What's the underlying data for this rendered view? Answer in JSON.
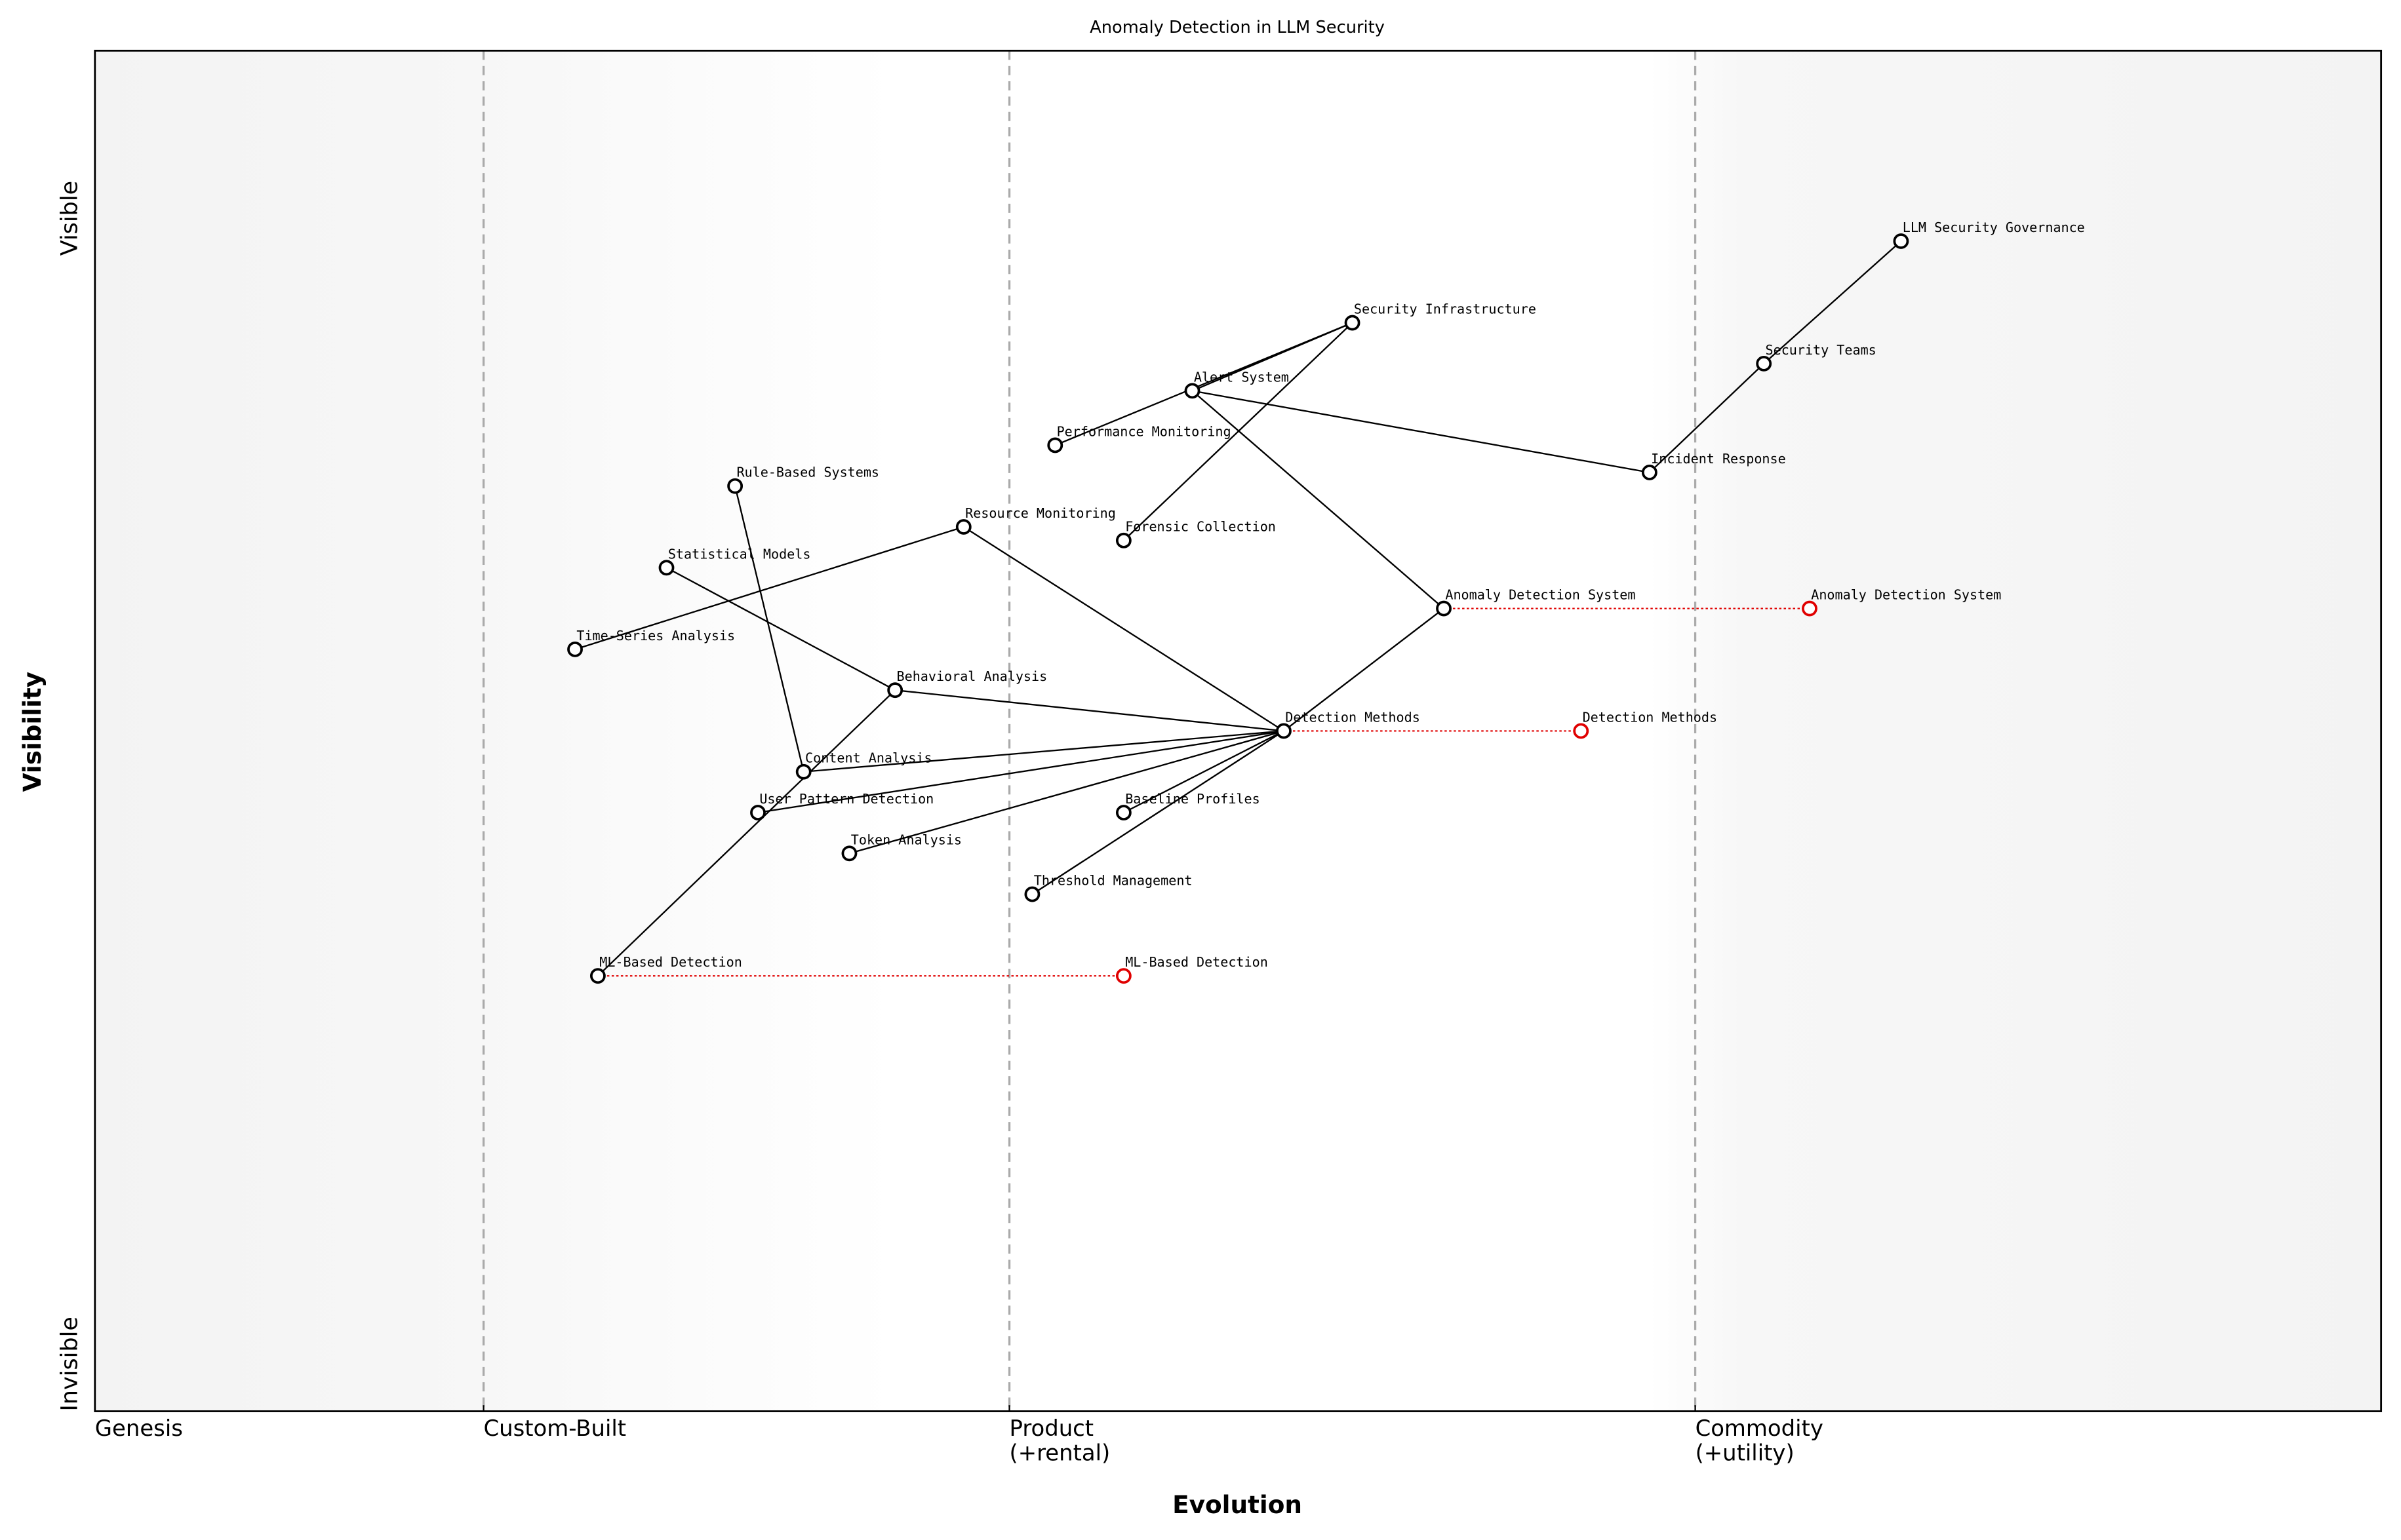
{
  "chart_data": {
    "type": "wardley",
    "title": "Anomaly Detection in LLM Security",
    "x_label": "Evolution",
    "y_label": "Visibility",
    "xlim": [
      0,
      1
    ],
    "ylim": [
      0,
      1
    ],
    "xticks": [
      {
        "value": 0,
        "label": "Genesis"
      },
      {
        "value": 0.17,
        "label": "Custom-Built"
      },
      {
        "value": 0.4,
        "label": "Product\n(+rental)"
      },
      {
        "value": 0.7,
        "label": "Commodity\n(+utility)"
      }
    ],
    "yticks": [
      {
        "value": 0,
        "label": "Invisible"
      },
      {
        "value": 1,
        "label": "Visible"
      }
    ],
    "node_color": "#000000",
    "evolve_color": "#e00000",
    "nodes": [
      {
        "name": "LLM Security Governance",
        "x": 0.79,
        "y": 0.86
      },
      {
        "name": "Security Teams",
        "x": 0.73,
        "y": 0.77
      },
      {
        "name": "Security Infrastructure",
        "x": 0.55,
        "y": 0.8
      },
      {
        "name": "Alert System",
        "x": 0.48,
        "y": 0.75
      },
      {
        "name": "Performance Monitoring",
        "x": 0.42,
        "y": 0.71
      },
      {
        "name": "Incident Response",
        "x": 0.68,
        "y": 0.69
      },
      {
        "name": "Rule-Based Systems",
        "x": 0.28,
        "y": 0.68
      },
      {
        "name": "Resource Monitoring",
        "x": 0.38,
        "y": 0.65
      },
      {
        "name": "Forensic Collection",
        "x": 0.45,
        "y": 0.64
      },
      {
        "name": "Statistical Models",
        "x": 0.25,
        "y": 0.62
      },
      {
        "name": "Time-Series Analysis",
        "x": 0.21,
        "y": 0.56
      },
      {
        "name": "Anomaly Detection System",
        "x": 0.59,
        "y": 0.59,
        "evolve_to": 0.75
      },
      {
        "name": "Behavioral Analysis",
        "x": 0.35,
        "y": 0.53
      },
      {
        "name": "Detection Methods",
        "x": 0.52,
        "y": 0.5,
        "evolve_to": 0.65
      },
      {
        "name": "Content Analysis",
        "x": 0.31,
        "y": 0.47
      },
      {
        "name": "User Pattern Detection",
        "x": 0.29,
        "y": 0.44
      },
      {
        "name": "Baseline Profiles",
        "x": 0.45,
        "y": 0.44
      },
      {
        "name": "Token Analysis",
        "x": 0.33,
        "y": 0.41
      },
      {
        "name": "Threshold Management",
        "x": 0.41,
        "y": 0.38
      },
      {
        "name": "ML-Based Detection",
        "x": 0.22,
        "y": 0.32,
        "evolve_to": 0.45
      }
    ],
    "links": [
      [
        "LLM Security Governance",
        "Security Teams"
      ],
      [
        "Security Teams",
        "Incident Response"
      ],
      [
        "Incident Response",
        "Alert System"
      ],
      [
        "Security Infrastructure",
        "Alert System"
      ],
      [
        "Security Infrastructure",
        "Performance Monitoring"
      ],
      [
        "Security Infrastructure",
        "Forensic Collection"
      ],
      [
        "Alert System",
        "Anomaly Detection System"
      ],
      [
        "Anomaly Detection System",
        "Detection Methods"
      ],
      [
        "Detection Methods",
        "Resource Monitoring"
      ],
      [
        "Detection Methods",
        "Behavioral Analysis"
      ],
      [
        "Detection Methods",
        "Content Analysis"
      ],
      [
        "Detection Methods",
        "User Pattern Detection"
      ],
      [
        "Detection Methods",
        "Token Analysis"
      ],
      [
        "Detection Methods",
        "Baseline Profiles"
      ],
      [
        "Detection Methods",
        "Threshold Management"
      ],
      [
        "Resource Monitoring",
        "Time-Series Analysis"
      ],
      [
        "Statistical Models",
        "Behavioral Analysis"
      ],
      [
        "Rule-Based Systems",
        "Content Analysis"
      ],
      [
        "Behavioral Analysis",
        "ML-Based Detection"
      ]
    ]
  }
}
